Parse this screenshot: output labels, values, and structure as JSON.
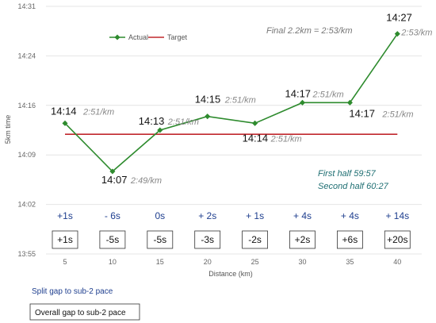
{
  "chart_data": {
    "type": "line",
    "ylabel": "5km time",
    "xlabel": "Distance (km)",
    "y_ticks": [
      "13:55",
      "14:02",
      "14:09",
      "14:16",
      "14:24",
      "14:31"
    ],
    "ylim_seconds": [
      835,
      871
    ],
    "x": [
      5,
      10,
      15,
      20,
      25,
      30,
      35,
      40
    ],
    "legend_position": "top-left",
    "grid": "horizontal",
    "series": [
      {
        "name": "Actual",
        "color": "#2e8b2e",
        "values_seconds": [
          854,
          847,
          853,
          855,
          854,
          857,
          857,
          867
        ],
        "time_labels": [
          "14:14",
          "14:07",
          "14:13",
          "14:15",
          "14:14",
          "14:17",
          "14:17",
          "14:27"
        ],
        "pace_labels": [
          "2:51/km",
          "2:49/km",
          "2:51/km",
          "2:51/km",
          "2:51/km",
          "2:51/km",
          "2:51/km",
          "2:53/km"
        ]
      },
      {
        "name": "Target",
        "color": "#c0282d",
        "value_seconds": 852.4
      }
    ],
    "annotations": {
      "final": "Final 2.2km = 2:53/km",
      "first_half": "First half 59:57",
      "second_half": "Second half 60:27"
    },
    "split_gaps": [
      "+1s",
      "- 6s",
      "0s",
      "+ 2s",
      "+ 1s",
      "+ 4s",
      "+ 4s",
      "+ 14s"
    ],
    "overall_gaps": [
      "+1s",
      "-5s",
      "-5s",
      "-3s",
      "-2s",
      "+2s",
      "+6s",
      "+20s"
    ]
  },
  "footer": {
    "split_label": "Split gap to sub-2 pace",
    "overall_label": "Overall gap to sub-2 pace"
  },
  "colors": {
    "actual": "#2e8b2e",
    "target": "#c0282d",
    "split_text": "#1f3f8f",
    "half_text": "#1f6f73"
  }
}
